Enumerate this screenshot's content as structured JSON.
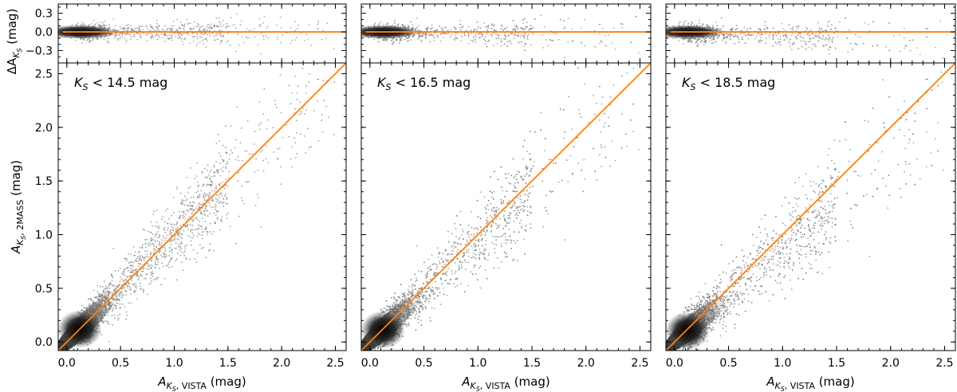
{
  "chart_data": [
    {
      "type": "scatter",
      "name": "panel-1",
      "annotation_italic": "K",
      "annotation_sub": "S",
      "annotation_rest": " < 14.5 mag",
      "ks_limit": 14.5,
      "xlabel_main": "A",
      "xlabel_sub": "K",
      "xlabel_subsub": "S",
      "xlabel_sub2": ", VISTA",
      "xlabel_unit": " (mag)",
      "ylabel_main": "A",
      "ylabel_sub": "K",
      "ylabel_subsub": "S",
      "ylabel_sub2": ", 2MASS",
      "ylabel_unit": " (mag)",
      "top_ylabel_prefix": "ΔA",
      "top_ylabel_sub": "K",
      "top_ylabel_subsub": "S",
      "top_ylabel_unit": " (mag)",
      "xlim": [
        -0.08,
        2.6
      ],
      "ylim": [
        -0.08,
        2.6
      ],
      "top_ylim": [
        -0.5,
        0.45
      ],
      "xticks": [
        0.0,
        0.5,
        1.0,
        1.5,
        2.0,
        2.5
      ],
      "xtick_labels": [
        "0.0",
        "0.5",
        "1.0",
        "1.5",
        "2.0",
        "2.5"
      ],
      "yticks": [
        0.0,
        0.5,
        1.0,
        1.5,
        2.0,
        2.5
      ],
      "ytick_labels": [
        "0.0",
        "0.5",
        "1.0",
        "1.5",
        "2.0",
        "2.5"
      ],
      "top_yticks": [
        -0.3,
        0.0,
        0.3
      ],
      "top_ytick_labels": [
        "−0.3",
        "0.0",
        "0.3"
      ],
      "reference_line": {
        "slope": 1,
        "intercept": 0,
        "color": "#ff7f0e"
      },
      "residual_line": {
        "value": 0,
        "color": "#ff7f0e"
      },
      "point_color": "#808080",
      "density_peak": 0.12,
      "scatter_model": {
        "core_sigma": 0.05,
        "slope": 1.0
      }
    },
    {
      "type": "scatter",
      "name": "panel-2",
      "annotation_italic": "K",
      "annotation_sub": "S",
      "annotation_rest": " < 16.5 mag",
      "ks_limit": 16.5,
      "xlabel_main": "A",
      "xlabel_sub": "K",
      "xlabel_subsub": "S",
      "xlabel_sub2": ", VISTA",
      "xlabel_unit": " (mag)",
      "xlim": [
        -0.08,
        2.6
      ],
      "ylim": [
        -0.08,
        2.6
      ],
      "top_ylim": [
        -0.5,
        0.45
      ],
      "xticks": [
        0.0,
        0.5,
        1.0,
        1.5,
        2.0,
        2.5
      ],
      "xtick_labels": [
        "0.0",
        "0.5",
        "1.0",
        "1.5",
        "2.0",
        "2.5"
      ],
      "yticks": [
        0.0,
        0.5,
        1.0,
        1.5,
        2.0,
        2.5
      ],
      "top_yticks": [
        -0.3,
        0.0,
        0.3
      ],
      "reference_line": {
        "slope": 1,
        "intercept": 0,
        "color": "#ff7f0e"
      },
      "residual_line": {
        "value": 0,
        "color": "#ff7f0e"
      },
      "point_color": "#808080",
      "density_peak": 0.12,
      "scatter_model": {
        "core_sigma": 0.06,
        "slope": 0.95
      }
    },
    {
      "type": "scatter",
      "name": "panel-3",
      "annotation_italic": "K",
      "annotation_sub": "S",
      "annotation_rest": " < 18.5 mag",
      "ks_limit": 18.5,
      "xlabel_main": "A",
      "xlabel_sub": "K",
      "xlabel_subsub": "S",
      "xlabel_sub2": ", VISTA",
      "xlabel_unit": " (mag)",
      "xlim": [
        -0.08,
        2.6
      ],
      "ylim": [
        -0.08,
        2.6
      ],
      "top_ylim": [
        -0.5,
        0.45
      ],
      "xticks": [
        0.0,
        0.5,
        1.0,
        1.5,
        2.0,
        2.5
      ],
      "xtick_labels": [
        "0.0",
        "0.5",
        "1.0",
        "1.5",
        "2.0",
        "2.5"
      ],
      "yticks": [
        0.0,
        0.5,
        1.0,
        1.5,
        2.0,
        2.5
      ],
      "top_yticks": [
        -0.3,
        0.0,
        0.3
      ],
      "reference_line": {
        "slope": 1,
        "intercept": 0,
        "color": "#ff7f0e"
      },
      "residual_line": {
        "value": 0,
        "color": "#ff7f0e"
      },
      "point_color": "#808080",
      "density_peak": 0.12,
      "scatter_model": {
        "core_sigma": 0.07,
        "slope": 0.88
      }
    }
  ]
}
